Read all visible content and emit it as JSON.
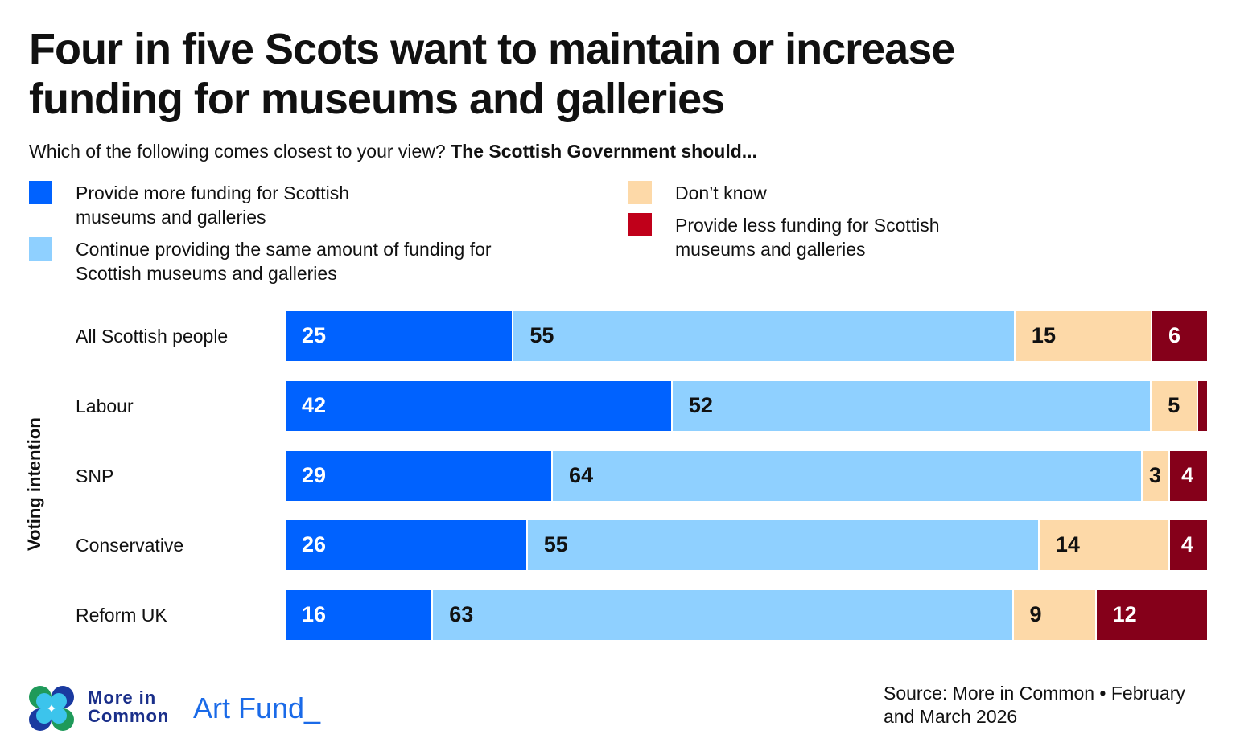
{
  "chart_data": {
    "type": "bar",
    "orientation": "horizontal",
    "stacked": true,
    "title": "Four in five Scots want to maintain or increase funding for museums and galleries",
    "subtitle_question": "Which of the following comes closest to your view?",
    "subtitle_bold": "The Scottish Government should...",
    "ylabel": "Voting intention",
    "categories": [
      "All Scottish people",
      "Labour",
      "SNP",
      "Conservative",
      "Reform UK"
    ],
    "series": [
      {
        "name": "Provide more funding for Scottish museums and galleries",
        "color": "#0062FF",
        "label_color": "#ffffff",
        "values": [
          25,
          42,
          29,
          26,
          16
        ]
      },
      {
        "name": "Continue providing the same amount of funding for Scottish museums and galleries",
        "color": "#8FD0FF",
        "label_color": "#111111",
        "values": [
          55,
          52,
          64,
          55,
          63
        ]
      },
      {
        "name": "Don’t know",
        "color": "#FDD9A8",
        "label_color": "#111111",
        "values": [
          15,
          5,
          3,
          14,
          9
        ]
      },
      {
        "name": "Provide less funding for Scottish museums and galleries",
        "color": "#85001A",
        "label_color": "#ffffff",
        "values": [
          6,
          1,
          4,
          4,
          12
        ]
      }
    ],
    "legend": "top",
    "grid": false
  },
  "footer": {
    "source": "Source: More in Common • February and March 2026",
    "logo1": "More in Common",
    "logo2": "Art Fund_"
  }
}
